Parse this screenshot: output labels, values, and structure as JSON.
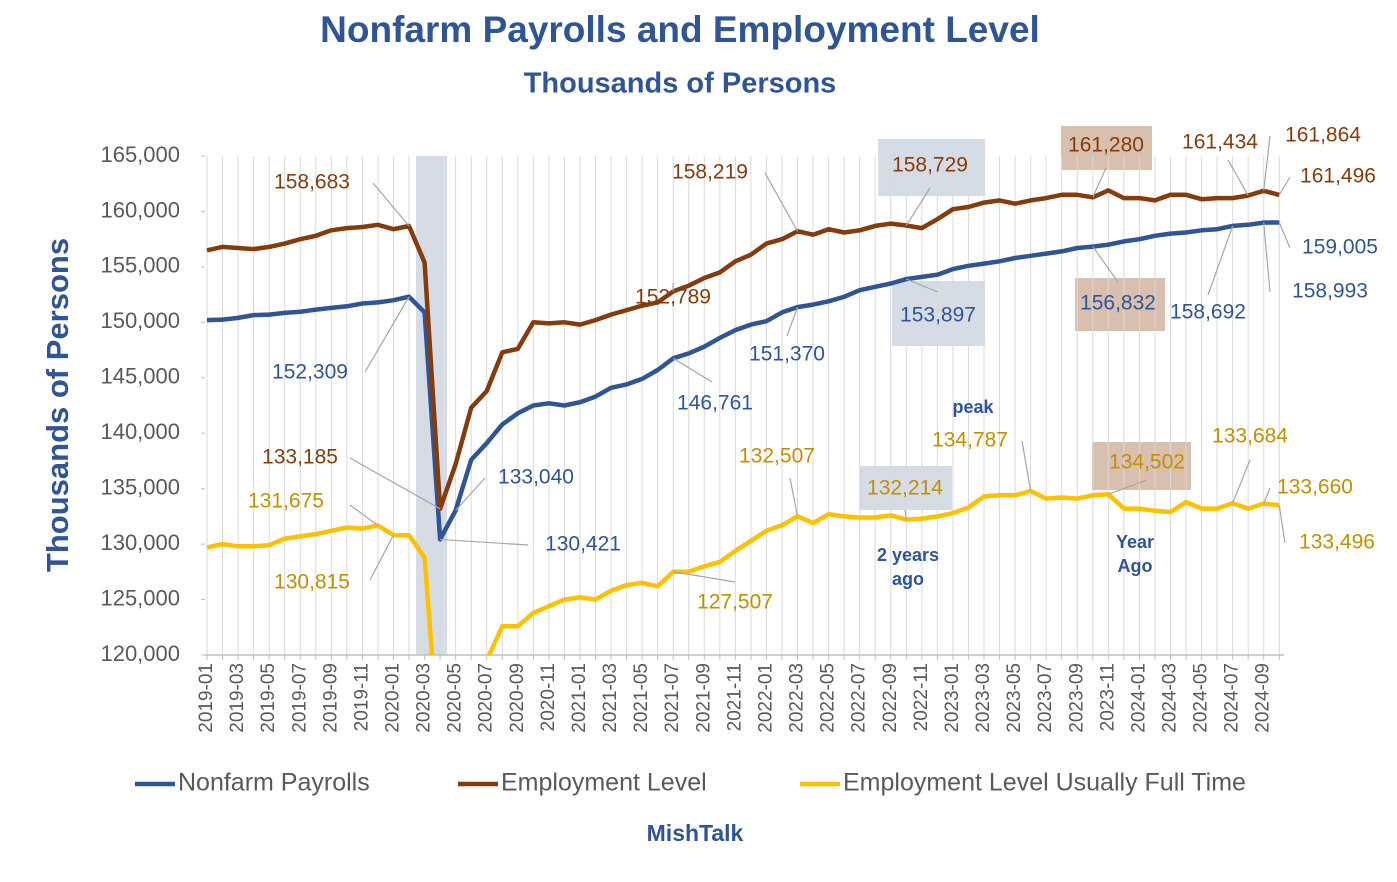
{
  "chart_data": {
    "type": "line",
    "title": "Nonfarm Payrolls and Employment Level",
    "subtitle": "Thousands of Persons",
    "y_label": "Thousands of  Persons",
    "footer": "MishTalk",
    "annotations": [
      "peak",
      "2 years ago",
      "Year Ago"
    ],
    "categories": [
      "2019-01",
      null,
      "2019-03",
      null,
      "2019-05",
      null,
      "2019-07",
      null,
      "2019-09",
      null,
      "2019-11",
      null,
      "2020-01",
      null,
      "2020-03",
      null,
      "2020-05",
      null,
      "2020-07",
      null,
      "2020-09",
      null,
      "2020-11",
      null,
      "2021-01",
      null,
      "2021-03",
      null,
      "2021-05",
      null,
      "2021-07",
      null,
      "2021-09",
      null,
      "2021-11",
      null,
      "2022-01",
      null,
      "2022-03",
      null,
      "2022-05",
      null,
      "2022-07",
      null,
      "2022-09",
      null,
      "2022-11",
      null,
      "2023-01",
      null,
      "2023-03",
      null,
      "2023-05",
      null,
      "2023-07",
      null,
      "2023-09",
      null,
      "2023-11",
      null,
      "2024-01",
      null,
      "2024-03",
      null,
      "2024-05",
      null,
      "2024-07",
      null,
      "2024-09",
      null
    ],
    "series": [
      {
        "name": "Nonfarm Payrolls",
        "color": "#2f5597",
        "label_color": "#2f5597",
        "values": [
          150200,
          150250,
          150400,
          150650,
          150700,
          150850,
          150950,
          151150,
          151300,
          151450,
          151700,
          151800,
          152000,
          152309,
          150900,
          130421,
          133040,
          137600,
          139100,
          140800,
          141800,
          142500,
          142700,
          142500,
          142800,
          143300,
          144100,
          144400,
          144900,
          145700,
          146761,
          147200,
          147800,
          148600,
          149300,
          149800,
          150100,
          150900,
          151370,
          151600,
          151900,
          152300,
          152900,
          153200,
          153500,
          153897,
          154100,
          154300,
          154800,
          155100,
          155300,
          155500,
          155800,
          156000,
          156200,
          156400,
          156700,
          156832,
          157000,
          157300,
          157500,
          157800,
          158000,
          158100,
          158300,
          158400,
          158692,
          158800,
          158993,
          159005
        ],
        "value_labels": [
          null,
          null,
          null,
          null,
          null,
          null,
          null,
          null,
          null,
          null,
          null,
          null,
          null,
          "152,309",
          null,
          "130,421",
          "133,040",
          null,
          null,
          null,
          null,
          null,
          null,
          null,
          null,
          null,
          null,
          null,
          null,
          null,
          "146,761",
          null,
          null,
          null,
          null,
          null,
          null,
          null,
          "151,370",
          null,
          null,
          null,
          null,
          null,
          null,
          "153,897",
          null,
          null,
          null,
          null,
          null,
          null,
          null,
          null,
          null,
          null,
          null,
          "156,832",
          null,
          null,
          null,
          null,
          null,
          null,
          null,
          null,
          "158,692",
          null,
          "158,993",
          "159,005"
        ]
      },
      {
        "name": "Employment Level",
        "color": "#843c0c",
        "label_color": "#843c0c",
        "values": [
          156500,
          156800,
          156700,
          156600,
          156800,
          157100,
          157500,
          157800,
          158300,
          158500,
          158600,
          158800,
          158400,
          158683,
          155400,
          133185,
          137200,
          142300,
          143800,
          147300,
          147600,
          150000,
          149900,
          150000,
          149800,
          150200,
          150700,
          151100,
          151500,
          151800,
          152789,
          153300,
          154000,
          154500,
          155500,
          156100,
          157100,
          157500,
          158219,
          157900,
          158400,
          158100,
          158300,
          158700,
          158900,
          158729,
          158500,
          159300,
          160200,
          160400,
          160800,
          161000,
          160700,
          161000,
          161200,
          161500,
          161500,
          161280,
          161900,
          161200,
          161200,
          161000,
          161500,
          161500,
          161100,
          161200,
          161200,
          161434,
          161864,
          161496
        ],
        "value_labels": [
          null,
          null,
          null,
          null,
          null,
          null,
          null,
          null,
          null,
          null,
          null,
          null,
          null,
          "158,683",
          null,
          "133,185",
          null,
          null,
          null,
          null,
          null,
          null,
          null,
          null,
          null,
          null,
          null,
          null,
          null,
          null,
          "152,789",
          null,
          null,
          null,
          null,
          null,
          null,
          null,
          "158,219",
          null,
          null,
          null,
          null,
          null,
          null,
          "158,729",
          null,
          null,
          null,
          null,
          null,
          null,
          null,
          null,
          null,
          null,
          null,
          "161,280",
          null,
          null,
          null,
          null,
          null,
          null,
          null,
          null,
          null,
          "161,434",
          "161,864",
          "161,496"
        ]
      },
      {
        "name": "Employment Level Usually Full Time",
        "color": "#ffc000",
        "label_color": "#bf9000",
        "values": [
          129700,
          130000,
          129800,
          129800,
          129900,
          130500,
          130700,
          130900,
          131200,
          131500,
          131400,
          131675,
          130815,
          130800,
          128800,
          110500,
          113000,
          117500,
          119500,
          122600,
          122600,
          123800,
          124400,
          125000,
          125200,
          125000,
          125800,
          126300,
          126500,
          126200,
          127507,
          127500,
          128000,
          128400,
          129400,
          130300,
          131200,
          131700,
          132507,
          131900,
          132700,
          132500,
          132400,
          132400,
          132600,
          132214,
          132300,
          132500,
          132800,
          133300,
          134300,
          134400,
          134400,
          134787,
          134100,
          134200,
          134100,
          134400,
          134502,
          133200,
          133200,
          133000,
          132900,
          133800,
          133200,
          133200,
          133684,
          133200,
          133660,
          133496
        ],
        "value_labels": [
          null,
          null,
          null,
          null,
          null,
          null,
          null,
          null,
          null,
          null,
          null,
          "131,675",
          "130,815",
          null,
          null,
          null,
          null,
          null,
          null,
          null,
          null,
          null,
          null,
          null,
          null,
          null,
          null,
          null,
          null,
          null,
          "127,507",
          null,
          null,
          null,
          null,
          null,
          null,
          null,
          "132,507",
          null,
          null,
          null,
          null,
          null,
          null,
          "132,214",
          null,
          null,
          null,
          null,
          null,
          null,
          null,
          "134,787",
          null,
          null,
          null,
          null,
          "134,502",
          null,
          null,
          null,
          null,
          null,
          null,
          null,
          "133,684",
          null,
          "133,660",
          "133,496"
        ]
      }
    ],
    "ylim": [
      120000,
      165000
    ],
    "yticks": [
      {
        "value": 120000,
        "label": "120,000"
      },
      {
        "value": 125000,
        "label": "125,000"
      },
      {
        "value": 130000,
        "label": "130,000"
      },
      {
        "value": 135000,
        "label": "135,000"
      },
      {
        "value": 140000,
        "label": "140,000"
      },
      {
        "value": 145000,
        "label": "145,000"
      },
      {
        "value": 150000,
        "label": "150,000"
      },
      {
        "value": 155000,
        "label": "155,000"
      },
      {
        "value": 160000,
        "label": "160,000"
      },
      {
        "value": 165000,
        "label": "165,000"
      }
    ],
    "grid": "x"
  }
}
